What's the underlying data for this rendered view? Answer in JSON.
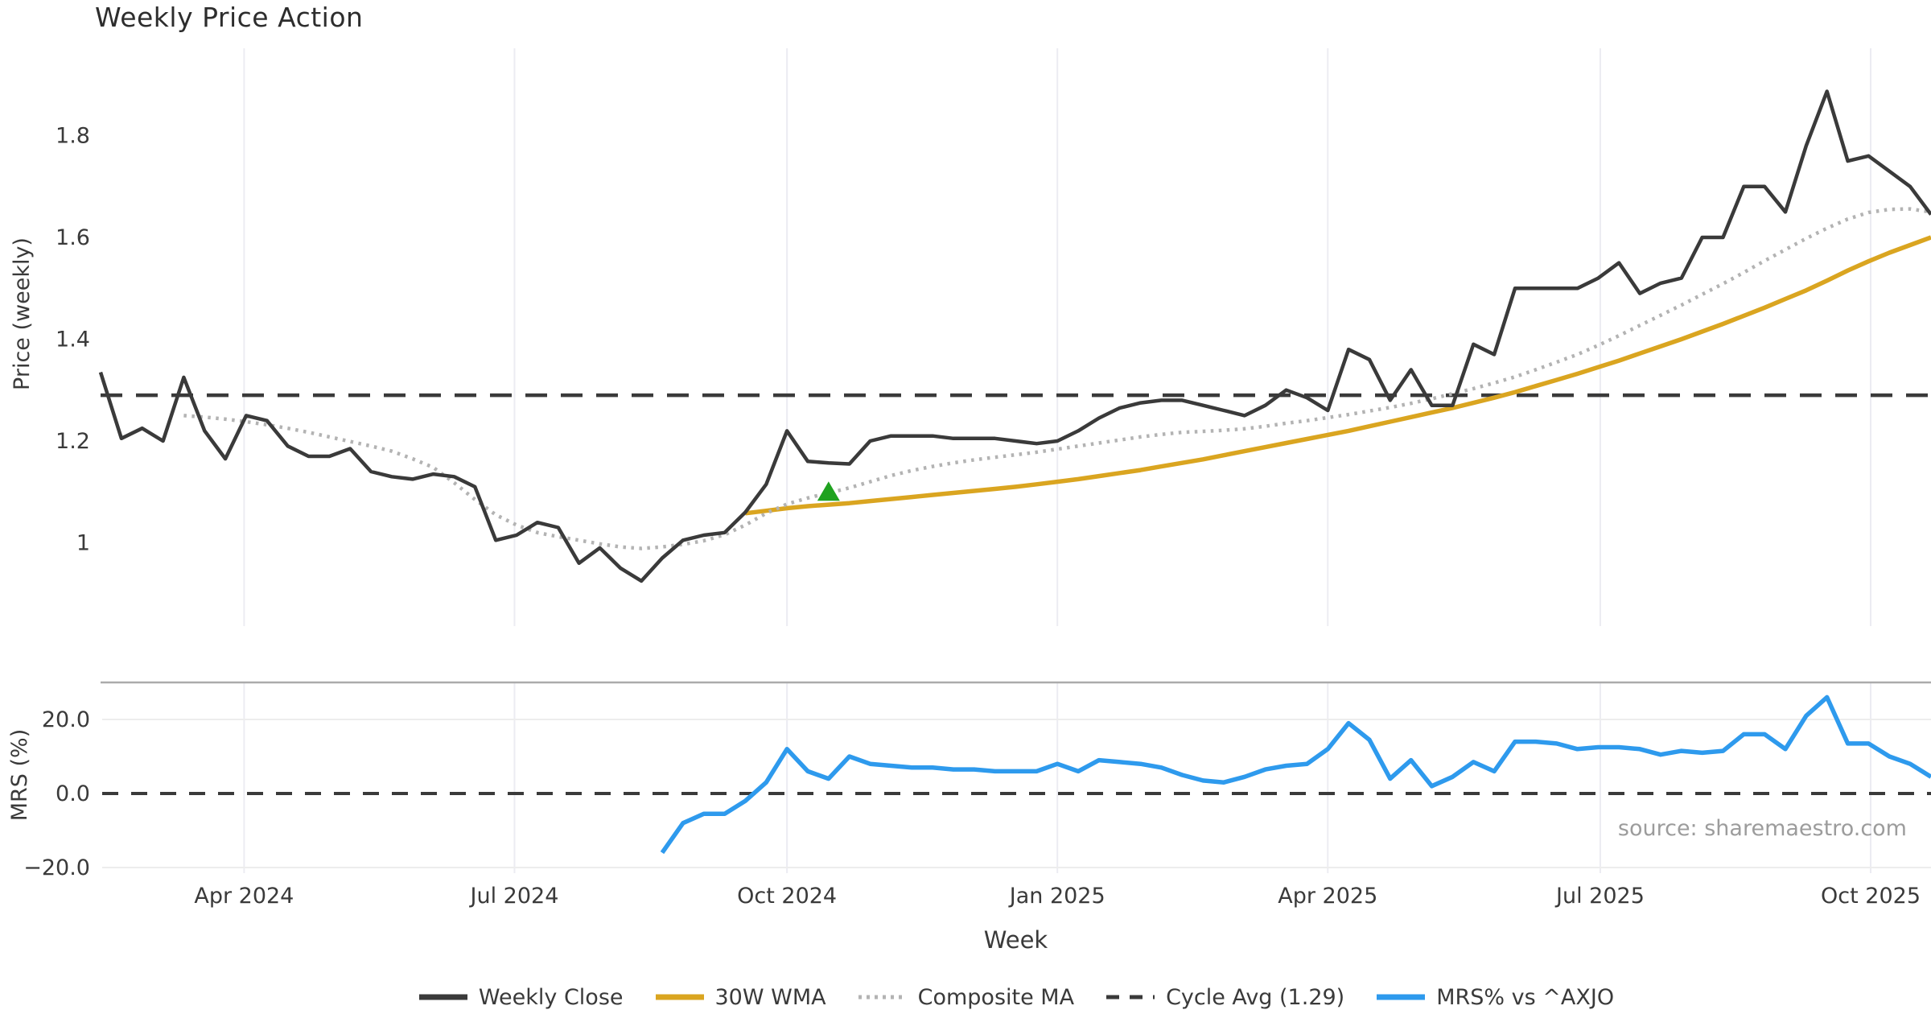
{
  "title": "Weekly Price Action",
  "source_note": "source: sharemaestro.com",
  "xlabel": "Week",
  "xticks": [
    "Apr 2024",
    "Jul 2024",
    "Oct 2024",
    "Jan 2025",
    "Apr 2025",
    "Jul 2025",
    "Oct 2025"
  ],
  "price_panel": {
    "ylabel": "Price (weekly)",
    "yticks": [
      "1.8",
      "1.6",
      "1.4",
      "1.2",
      "1"
    ]
  },
  "mrs_panel": {
    "ylabel": "MRS (%)",
    "yticks": [
      "20.0",
      "0.0",
      "−20.0"
    ]
  },
  "legend": [
    {
      "id": "weekly-close",
      "label": "Weekly Close",
      "color": "#3a3a3a",
      "style": "solid"
    },
    {
      "id": "wma-30w",
      "label": "30W WMA",
      "color": "#DAA520",
      "style": "solid"
    },
    {
      "id": "composite-ma",
      "label": "Composite MA",
      "color": "#b3b3b3",
      "style": "dotted"
    },
    {
      "id": "cycle-avg",
      "label": "Cycle Avg (1.29)",
      "color": "#3a3a3a",
      "style": "dashed"
    },
    {
      "id": "mrs",
      "label": "MRS% vs ^AXJO",
      "color": "#2E9AED",
      "style": "solid"
    }
  ],
  "colors": {
    "weekly_close": "#3a3a3a",
    "wma": "#DAA520",
    "composite": "#b3b3b3",
    "cycle_dash": "#3a3a3a",
    "mrs_blue": "#2E9AED",
    "marker_green": "#1FA21F",
    "grid": "#ececf2",
    "light_grid": "#ededed",
    "spine": "#ababab",
    "muted_text": "#9c9c9c",
    "background": "#ffffff"
  },
  "chart_data": [
    {
      "type": "line",
      "panel": "price",
      "title": "Weekly Price Action",
      "xlabel": "Week",
      "ylabel": "Price (weekly)",
      "x_unit": "weeks since first point (early Feb 2024)",
      "xtick_positions": [
        6.9,
        19.9,
        33.0,
        46.0,
        59.0,
        72.1,
        85.1
      ],
      "xtick_labels": [
        "Apr 2024",
        "Jul 2024",
        "Oct 2024",
        "Jan 2025",
        "Apr 2025",
        "Jul 2025",
        "Oct 2025"
      ],
      "ylim": [
        0.83,
        1.97
      ],
      "yticks": [
        1.0,
        1.2,
        1.4,
        1.6,
        1.8
      ],
      "grid": "vertical-only",
      "legend_position": "below-figure",
      "cycle_avg": 1.29,
      "series": [
        {
          "name": "Weekly Close",
          "style": "solid",
          "color_key": "weekly_close",
          "start_week": 0,
          "values": [
            1.335,
            1.205,
            1.225,
            1.2,
            1.325,
            1.22,
            1.165,
            1.25,
            1.24,
            1.19,
            1.17,
            1.17,
            1.185,
            1.14,
            1.13,
            1.125,
            1.135,
            1.13,
            1.11,
            1.005,
            1.015,
            1.04,
            1.03,
            0.96,
            0.99,
            0.95,
            0.925,
            0.97,
            1.005,
            1.015,
            1.02,
            1.06,
            1.115,
            1.22,
            1.16,
            1.157,
            1.155,
            1.2,
            1.21,
            1.21,
            1.21,
            1.205,
            1.205,
            1.205,
            1.2,
            1.195,
            1.2,
            1.22,
            1.245,
            1.265,
            1.275,
            1.28,
            1.28,
            1.27,
            1.26,
            1.25,
            1.27,
            1.3,
            1.285,
            1.26,
            1.38,
            1.36,
            1.28,
            1.34,
            1.27,
            1.27,
            1.39,
            1.37,
            1.5,
            1.5,
            1.5,
            1.5,
            1.52,
            1.55,
            1.49,
            1.51,
            1.52,
            1.6,
            1.6,
            1.7,
            1.7,
            1.65,
            1.78,
            1.887,
            1.75,
            1.76,
            1.73,
            1.7,
            1.645
          ]
        },
        {
          "name": "30W WMA",
          "style": "solid",
          "color_key": "wma",
          "start_week": 31,
          "values": [
            1.058,
            1.063,
            1.068,
            1.072,
            1.075,
            1.078,
            1.082,
            1.086,
            1.09,
            1.094,
            1.098,
            1.102,
            1.106,
            1.11,
            1.115,
            1.12,
            1.125,
            1.131,
            1.137,
            1.143,
            1.15,
            1.157,
            1.164,
            1.172,
            1.18,
            1.188,
            1.196,
            1.204,
            1.212,
            1.22,
            1.229,
            1.238,
            1.247,
            1.256,
            1.265,
            1.275,
            1.285,
            1.296,
            1.308,
            1.32,
            1.332,
            1.345,
            1.358,
            1.372,
            1.386,
            1.4,
            1.415,
            1.43,
            1.446,
            1.462,
            1.479,
            1.496,
            1.515,
            1.535,
            1.553,
            1.57,
            1.585,
            1.6
          ]
        },
        {
          "name": "Composite MA",
          "style": "dotted",
          "color_key": "composite",
          "start_week": 4,
          "values": [
            1.25,
            1.247,
            1.243,
            1.238,
            1.232,
            1.225,
            1.217,
            1.208,
            1.199,
            1.19,
            1.18,
            1.165,
            1.148,
            1.118,
            1.085,
            1.055,
            1.035,
            1.02,
            1.012,
            1.005,
            0.998,
            0.992,
            0.989,
            0.992,
            0.997,
            1.004,
            1.016,
            1.035,
            1.058,
            1.076,
            1.088,
            1.098,
            1.108,
            1.12,
            1.132,
            1.142,
            1.15,
            1.157,
            1.163,
            1.168,
            1.173,
            1.178,
            1.184,
            1.19,
            1.196,
            1.202,
            1.208,
            1.213,
            1.217,
            1.219,
            1.221,
            1.224,
            1.229,
            1.235,
            1.24,
            1.246,
            1.252,
            1.259,
            1.266,
            1.274,
            1.283,
            1.293,
            1.303,
            1.314,
            1.326,
            1.34,
            1.355,
            1.37,
            1.388,
            1.407,
            1.427,
            1.447,
            1.467,
            1.488,
            1.509,
            1.531,
            1.554,
            1.576,
            1.598,
            1.618,
            1.636,
            1.649,
            1.655,
            1.656,
            1.65
          ]
        },
        {
          "name": "Cycle Avg (1.29)",
          "style": "dashed",
          "color_key": "cycle_dash",
          "constant": 1.29
        }
      ],
      "markers": [
        {
          "shape": "triangle-up",
          "color_key": "marker_green",
          "week": 35,
          "value": 1.1
        }
      ]
    },
    {
      "type": "line",
      "panel": "mrs",
      "ylabel": "MRS (%)",
      "ylim": [
        -29,
        29
      ],
      "yticks": [
        20.0,
        0.0,
        -20.0
      ],
      "zero_line": "dashed",
      "series": [
        {
          "name": "MRS% vs ^AXJO",
          "style": "solid",
          "color_key": "mrs_blue",
          "start_week": 27,
          "values": [
            -16,
            -8,
            -5.5,
            -5.5,
            -2,
            3,
            12,
            6,
            4,
            10,
            8,
            7.5,
            7,
            7,
            6.5,
            6.5,
            6,
            6,
            6,
            8,
            6,
            9,
            8.5,
            8,
            7,
            5,
            3.5,
            3,
            4.5,
            6.5,
            7.5,
            8,
            12,
            19,
            14.5,
            4,
            9,
            2,
            4.5,
            8.5,
            6,
            14,
            14,
            13.5,
            12,
            12.5,
            12.5,
            12,
            10.5,
            11.5,
            11,
            11.5,
            16,
            16,
            12,
            21,
            26,
            13.5,
            13.5,
            10,
            8,
            4.5
          ]
        }
      ]
    }
  ]
}
